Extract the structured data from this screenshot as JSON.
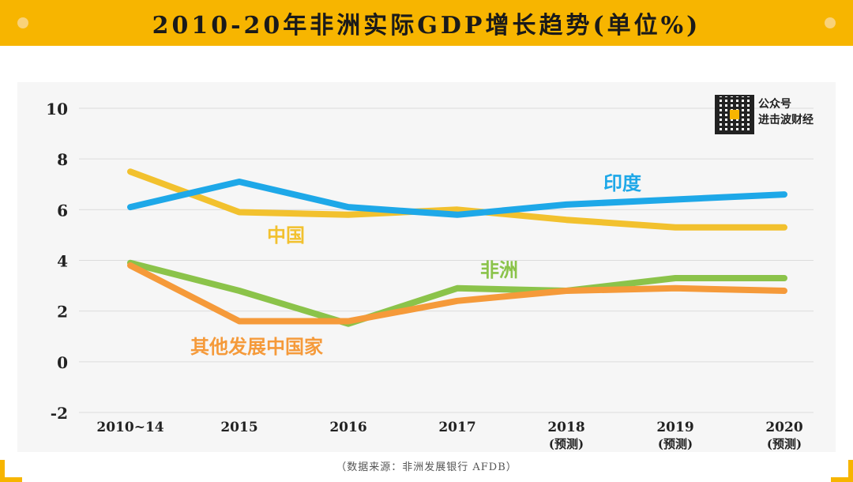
{
  "page": {
    "title": "2010-20年非洲实际GDP增长趋势(单位%)",
    "qr_label_line1": "公众号",
    "qr_label_line2": "进击波财经",
    "source": "（数据来源：非洲发展银行 AFDB）"
  },
  "chart_data": {
    "type": "line",
    "title": "2010-20年非洲实际GDP增长趋势(单位%)",
    "categories": [
      "2010~14",
      "2015",
      "2016",
      "2017",
      "2018",
      "2019",
      "2020"
    ],
    "category_sublabels": [
      "",
      "",
      "",
      "",
      "(预测)",
      "(预测)",
      "(预测)"
    ],
    "ylim": [
      -2,
      10
    ],
    "yticks": [
      -2,
      0,
      2,
      4,
      6,
      8,
      10
    ],
    "grid": true,
    "series": [
      {
        "name": "印度",
        "color": "#1ea8e8",
        "values": [
          6.1,
          7.1,
          6.1,
          5.8,
          6.2,
          6.4,
          6.6
        ]
      },
      {
        "name": "中国",
        "color": "#f2c12e",
        "values": [
          7.5,
          5.9,
          5.8,
          6.0,
          5.6,
          5.3,
          5.3
        ]
      },
      {
        "name": "非洲",
        "color": "#8bc34a",
        "values": [
          3.9,
          2.8,
          1.5,
          2.9,
          2.8,
          3.3,
          3.3
        ]
      },
      {
        "name": "其他发展中国家",
        "color": "#f59a3a",
        "values": [
          3.8,
          1.6,
          1.6,
          2.4,
          2.8,
          2.9,
          2.8
        ]
      }
    ]
  }
}
